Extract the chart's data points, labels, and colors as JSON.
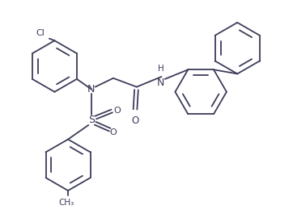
{
  "bg_color": "#ffffff",
  "line_color": "#3c3c5a",
  "line_width": 1.3,
  "figsize": [
    3.62,
    2.65
  ],
  "dpi": 100,
  "xlim": [
    0,
    10
  ],
  "ylim": [
    0,
    7.3
  ]
}
